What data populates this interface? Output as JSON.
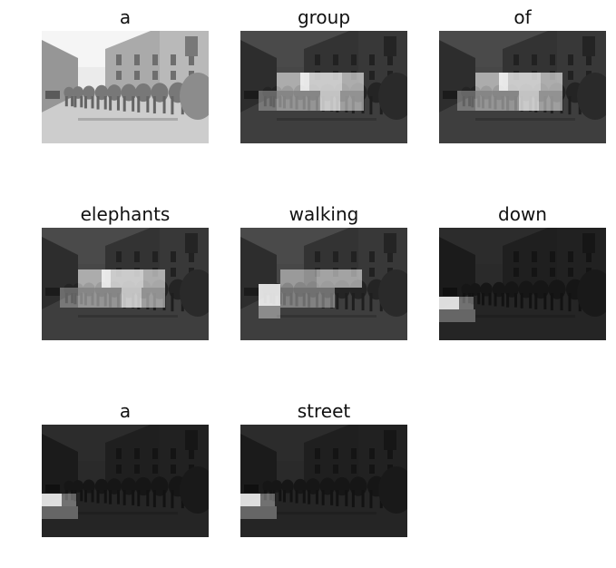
{
  "panels": [
    {
      "word": "a",
      "attention": "none"
    },
    {
      "word": "group",
      "attention": "center-band"
    },
    {
      "word": "of",
      "attention": "center-band"
    },
    {
      "word": "elephants",
      "attention": "center-band"
    },
    {
      "word": "walking",
      "attention": "center-left"
    },
    {
      "word": "down",
      "attention": "left-low"
    },
    {
      "word": "a",
      "attention": "left-low"
    },
    {
      "word": "street",
      "attention": "left-low"
    }
  ]
}
